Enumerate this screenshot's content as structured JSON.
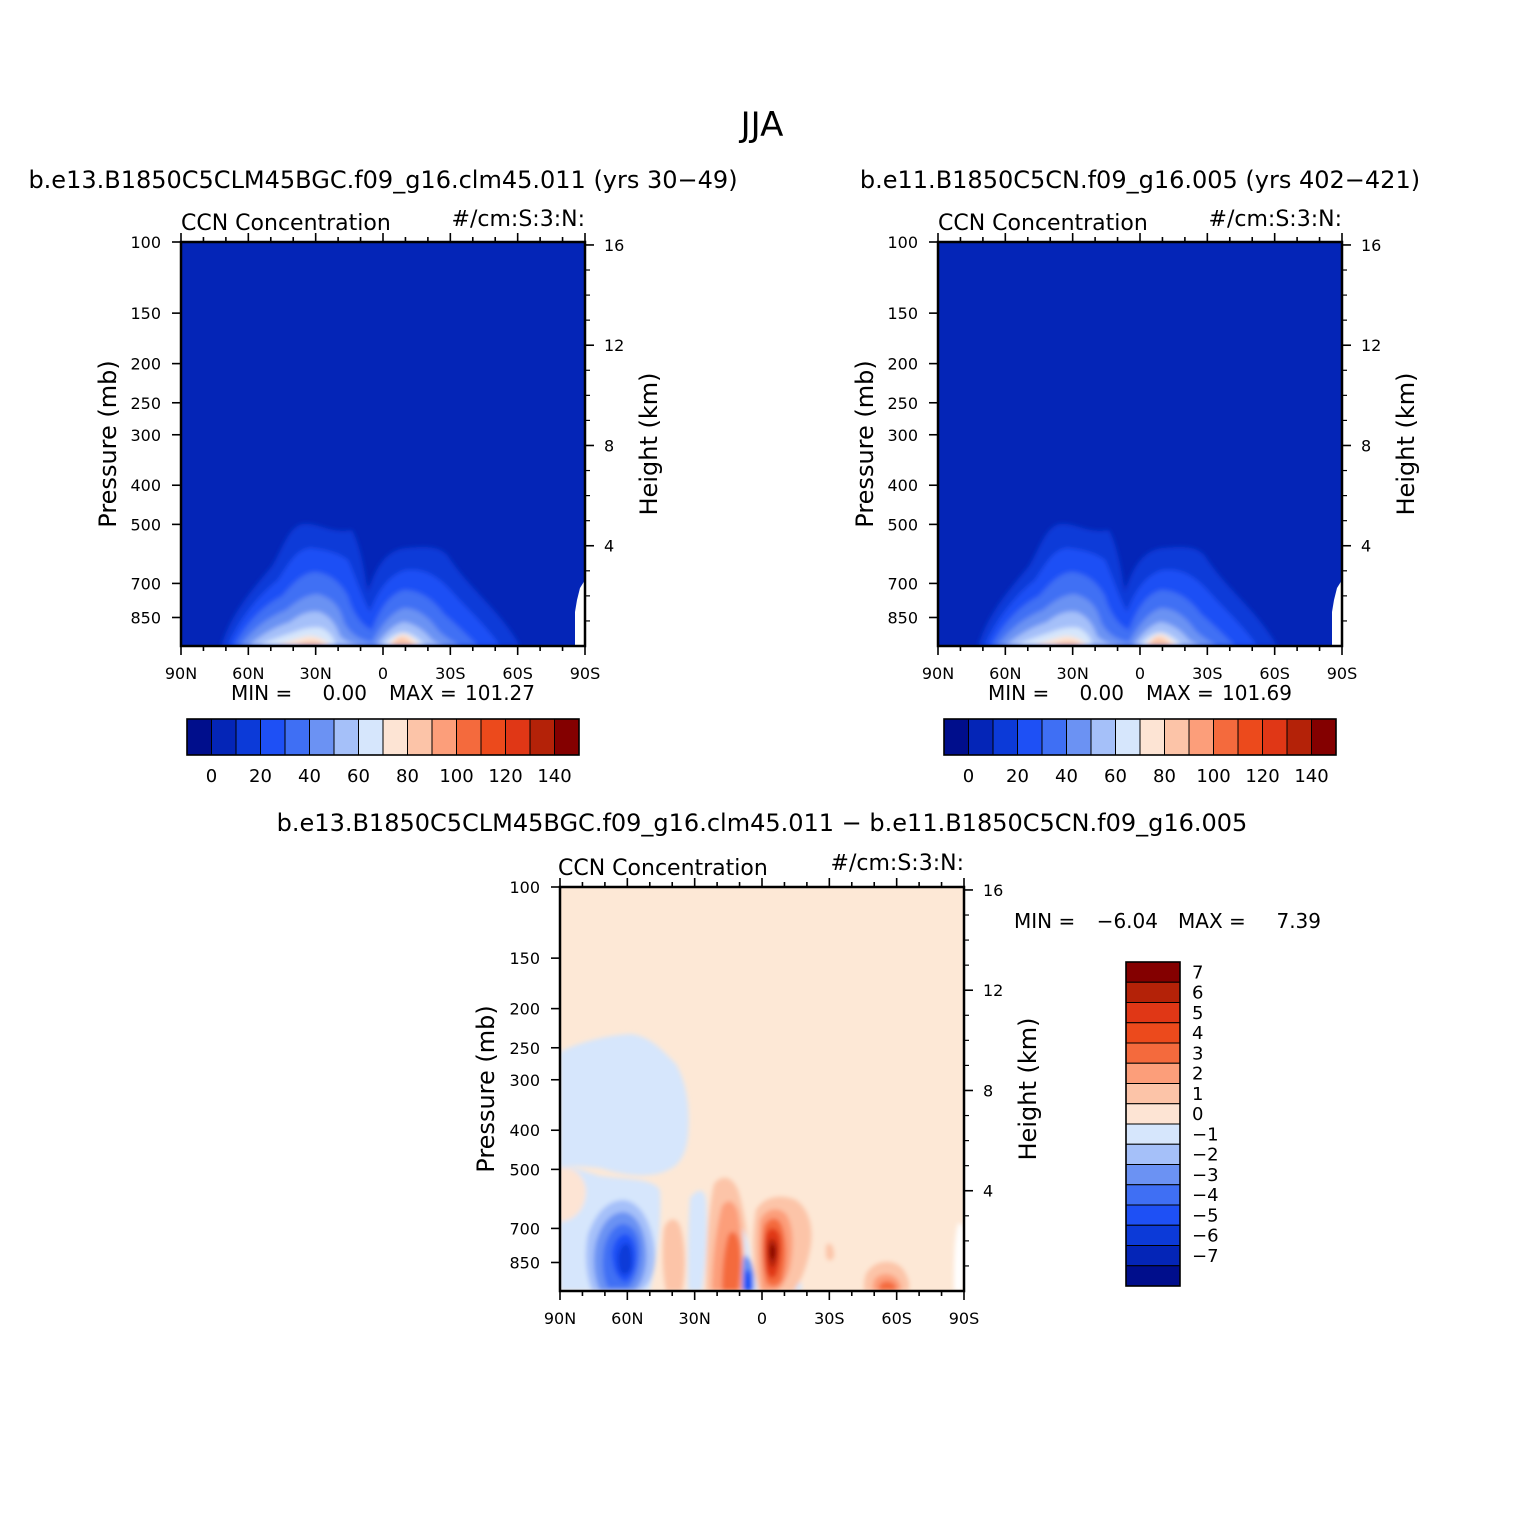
{
  "figure": {
    "title": "JJA",
    "difference_title": "b.e13.B1850C5CLM45BGC.f09_g16.clm45.011 − b.e11.B1850C5CN.f09_g16.005"
  },
  "chart_data": [
    {
      "type": "heatmap",
      "title": "b.e13.B1850C5CLM45BGC.f09_g16.clm45.011 (yrs 30−49)",
      "subtitle_left": "CCN Concentration",
      "subtitle_right": "#/cm:S:3:N:",
      "ylabel": "Pressure (mb)",
      "ylabel_right": "Height (km)",
      "x_tick_labels": [
        "90N",
        "60N",
        "30N",
        "0",
        "30S",
        "60S",
        "90S"
      ],
      "y_tick_labels": [
        "100",
        "150",
        "200",
        "250",
        "300",
        "400",
        "500",
        "700",
        "850"
      ],
      "y_ticks": [
        100,
        150,
        200,
        250,
        300,
        400,
        500,
        700,
        850
      ],
      "height_tick_labels": [
        "16",
        "12",
        "8",
        "4"
      ],
      "height_ticks": [
        16,
        12,
        8,
        4
      ],
      "xlim": [
        90,
        -90
      ],
      "ylim": [
        1000,
        100
      ],
      "y_scale": "log",
      "min_label": "MIN =",
      "min_value": "0.00",
      "max_label": "MAX =",
      "max_value": "101.27",
      "colorbar_tick_labels": [
        "0",
        "20",
        "40",
        "60",
        "80",
        "100",
        "120",
        "140"
      ],
      "contour_levels": [
        0,
        10,
        20,
        30,
        40,
        50,
        60,
        70,
        80,
        90,
        100,
        110,
        120,
        130,
        140
      ],
      "colorbar_colors": [
        "#000e8c",
        "#0425b7",
        "#0c3ad8",
        "#1e50f5",
        "#3f6ff4",
        "#6b92f3",
        "#a5c0f9",
        "#d6e6fc",
        "#fde4d4",
        "#fcc4a8",
        "#fc9e7a",
        "#f46a3d",
        "#ec4a1c",
        "#e03716",
        "#b42208",
        "#840000"
      ],
      "background_level_color": "#0425b7",
      "note_region": "high values near surface at 30N and 10S"
    },
    {
      "type": "heatmap",
      "title": "b.e11.B1850C5CN.f09_g16.005 (yrs 402−421)",
      "subtitle_left": "CCN Concentration",
      "subtitle_right": "#/cm:S:3:N:",
      "ylabel": "Pressure (mb)",
      "ylabel_right": "Height (km)",
      "x_tick_labels": [
        "90N",
        "60N",
        "30N",
        "0",
        "30S",
        "60S",
        "90S"
      ],
      "y_tick_labels": [
        "100",
        "150",
        "200",
        "250",
        "300",
        "400",
        "500",
        "700",
        "850"
      ],
      "y_ticks": [
        100,
        150,
        200,
        250,
        300,
        400,
        500,
        700,
        850
      ],
      "height_tick_labels": [
        "16",
        "12",
        "8",
        "4"
      ],
      "height_ticks": [
        16,
        12,
        8,
        4
      ],
      "xlim": [
        90,
        -90
      ],
      "ylim": [
        1000,
        100
      ],
      "y_scale": "log",
      "min_label": "MIN =",
      "min_value": "0.00",
      "max_label": "MAX =",
      "max_value": "101.69",
      "colorbar_tick_labels": [
        "0",
        "20",
        "40",
        "60",
        "80",
        "100",
        "120",
        "140"
      ],
      "contour_levels": [
        0,
        10,
        20,
        30,
        40,
        50,
        60,
        70,
        80,
        90,
        100,
        110,
        120,
        130,
        140
      ],
      "colorbar_colors": [
        "#000e8c",
        "#0425b7",
        "#0c3ad8",
        "#1e50f5",
        "#3f6ff4",
        "#6b92f3",
        "#a5c0f9",
        "#d6e6fc",
        "#fde4d4",
        "#fcc4a8",
        "#fc9e7a",
        "#f46a3d",
        "#ec4a1c",
        "#e03716",
        "#b42208",
        "#840000"
      ],
      "background_level_color": "#0425b7"
    },
    {
      "type": "heatmap",
      "title": "b.e13.B1850C5CLM45BGC.f09_g16.clm45.011 − b.e11.B1850C5CN.f09_g16.005",
      "subtitle_left": "CCN Concentration",
      "subtitle_right": "#/cm:S:3:N:",
      "ylabel": "Pressure (mb)",
      "ylabel_right": "Height (km)",
      "x_tick_labels": [
        "90N",
        "60N",
        "30N",
        "0",
        "30S",
        "60S",
        "90S"
      ],
      "y_tick_labels": [
        "100",
        "150",
        "200",
        "250",
        "300",
        "400",
        "500",
        "700",
        "850"
      ],
      "y_ticks": [
        100,
        150,
        200,
        250,
        300,
        400,
        500,
        700,
        850
      ],
      "height_tick_labels": [
        "16",
        "12",
        "8",
        "4"
      ],
      "height_ticks": [
        16,
        12,
        8,
        4
      ],
      "xlim": [
        90,
        -90
      ],
      "ylim": [
        1000,
        100
      ],
      "y_scale": "log",
      "min_label": "MIN =",
      "min_value": "−6.04",
      "max_label": "MAX =",
      "max_value": "7.39",
      "colorbar_tick_labels": [
        "7",
        "6",
        "5",
        "4",
        "3",
        "2",
        "1",
        "0",
        "−1",
        "−2",
        "−3",
        "−4",
        "−5",
        "−6",
        "−7"
      ],
      "contour_levels": [
        7,
        6,
        5,
        4,
        3,
        2,
        1,
        0,
        -1,
        -2,
        -3,
        -4,
        -5,
        -6,
        -7
      ],
      "colorbar_colors": [
        "#840000",
        "#b42208",
        "#e03716",
        "#ec4a1c",
        "#f46a3d",
        "#fc9e7a",
        "#fcc4a8",
        "#fde4d4",
        "#d6e6fc",
        "#a5c0f9",
        "#6b92f3",
        "#3f6ff4",
        "#1e50f5",
        "#0c3ad8",
        "#0425b7",
        "#000e8c"
      ],
      "background_level_color": "#fde8d6"
    }
  ]
}
